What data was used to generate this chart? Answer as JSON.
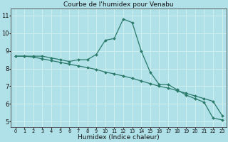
{
  "title": "Courbe de l'humidex pour Venabu",
  "xlabel": "Humidex (Indice chaleur)",
  "bg_color": "#b0e0e8",
  "grid_color": "#d0f0f0",
  "line_color": "#2a7a6a",
  "x_ticks": [
    0,
    1,
    2,
    3,
    4,
    5,
    6,
    7,
    8,
    9,
    10,
    11,
    12,
    13,
    14,
    15,
    16,
    17,
    18,
    19,
    20,
    21,
    22,
    23
  ],
  "y_ticks": [
    5,
    6,
    7,
    8,
    9,
    10,
    11
  ],
  "ylim": [
    4.7,
    11.4
  ],
  "xlim": [
    -0.5,
    23.5
  ],
  "series1_x": [
    0,
    1,
    2,
    3,
    4,
    5,
    6,
    7,
    8,
    9,
    10,
    11,
    12,
    13,
    14,
    15,
    16,
    17,
    18,
    19,
    20,
    21,
    22,
    23
  ],
  "series1_y": [
    8.7,
    8.7,
    8.7,
    8.7,
    8.6,
    8.5,
    8.4,
    8.5,
    8.5,
    8.8,
    9.6,
    9.7,
    10.8,
    10.6,
    9.0,
    7.8,
    7.1,
    7.1,
    6.8,
    6.5,
    6.3,
    6.1,
    5.2,
    5.1
  ],
  "series2_x": [
    0,
    1,
    2,
    3,
    4,
    5,
    6,
    7,
    8,
    9,
    10,
    11,
    12,
    13,
    14,
    15,
    16,
    17,
    18,
    19,
    20,
    21,
    22,
    23
  ],
  "series2_y": [
    8.7,
    8.7,
    8.65,
    8.55,
    8.45,
    8.35,
    8.25,
    8.15,
    8.05,
    7.95,
    7.8,
    7.7,
    7.58,
    7.45,
    7.3,
    7.15,
    7.0,
    6.9,
    6.75,
    6.6,
    6.45,
    6.3,
    6.15,
    5.35
  ],
  "marker": "D",
  "marker_size": 2.0,
  "line_width": 0.9,
  "title_fontsize": 6.5,
  "xlabel_fontsize": 6.5,
  "xtick_fontsize": 4.8,
  "ytick_fontsize": 6.0
}
